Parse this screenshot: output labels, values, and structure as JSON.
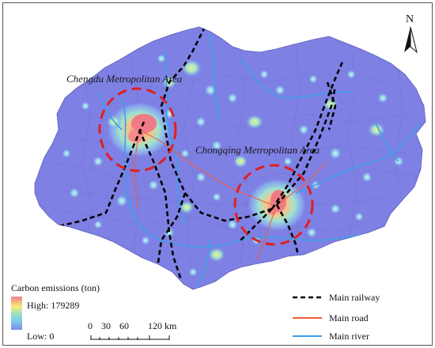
{
  "north_arrow": {
    "label": "N"
  },
  "regions": [
    {
      "label": "Chengdu Metropolitan Area"
    },
    {
      "label": "Chongqing Metropolitan Area"
    }
  ],
  "emissions_legend": {
    "title": "Carbon emissions (ton)",
    "high_label": "High: 179289",
    "low_label": "Low: 0",
    "ramp_colors": [
      "#f08090",
      "#f7ea7a",
      "#8fe0c8",
      "#7dc3ef",
      "#7f86e6"
    ]
  },
  "scale_bar": {
    "ticks": [
      "0",
      "30",
      "60",
      "120 km"
    ]
  },
  "line_legend": [
    {
      "label": "Main railway",
      "style": "dashed",
      "color": "#000000"
    },
    {
      "label": "Main road",
      "style": "solid",
      "color": "#f25c3c"
    },
    {
      "label": "Main river",
      "style": "solid",
      "color": "#3aa0e8"
    }
  ],
  "colors": {
    "land": "#7f80e4",
    "boundary": "#5a5cbb",
    "hotspot_red": "#f07a86",
    "metro_circle": "#e01f1f"
  }
}
